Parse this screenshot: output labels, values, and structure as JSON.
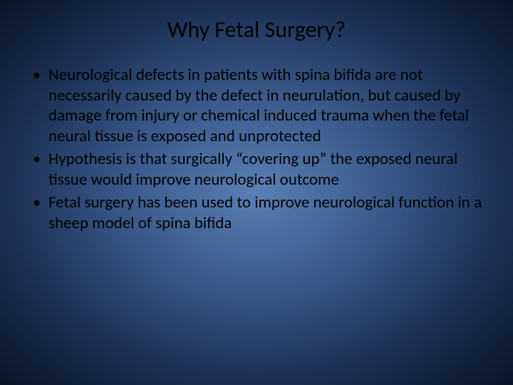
{
  "slide": {
    "title": "Why Fetal Surgery?",
    "background": {
      "gradient_inner": "#5a7fb5",
      "gradient_mid": "#3a5a8a",
      "gradient_outer": "#1a2f52",
      "gradient_edge": "#0a1428"
    },
    "title_style": {
      "color": "#000000",
      "fontsize": 32,
      "font_family": "Calibri",
      "font_weight": 400
    },
    "body_style": {
      "color": "#000000",
      "fontsize": 23,
      "font_family": "Calibri",
      "line_height": 1.24
    },
    "bullets": [
      "Neurological defects in patients with spina bifida are not necessarily caused by the defect in neurulation, but caused by damage from injury or chemical induced trauma when the fetal neural tissue is exposed and unprotected",
      "Hypothesis is that surgically “covering up” the exposed neural tissue would improve neurological outcome",
      "Fetal surgery has been used to improve neurological function in a sheep model of spina bifida"
    ]
  }
}
